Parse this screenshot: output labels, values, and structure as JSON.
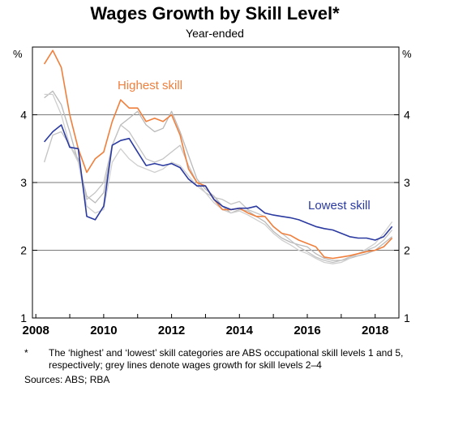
{
  "chart_data": {
    "type": "line",
    "title": "Wages Growth by Skill Level*",
    "subtitle": "Year-ended",
    "ylabel_left": "%",
    "ylabel_right": "%",
    "ylim": [
      1,
      5
    ],
    "yticks": [
      1,
      2,
      3,
      4
    ],
    "xlim": [
      2007.9,
      2018.7
    ],
    "xticks": [
      2008,
      2010,
      2012,
      2014,
      2016,
      2018
    ],
    "grid": true,
    "annotations": [
      "Highest skill",
      "Lowest skill"
    ],
    "series": [
      {
        "name": "Highest skill",
        "color": "#f07f3c",
        "x": [
          2008.25,
          2008.5,
          2008.75,
          2009.0,
          2009.25,
          2009.5,
          2009.75,
          2010.0,
          2010.25,
          2010.5,
          2010.75,
          2011.0,
          2011.25,
          2011.5,
          2011.75,
          2012.0,
          2012.25,
          2012.5,
          2012.75,
          2013.0,
          2013.25,
          2013.5,
          2013.75,
          2014.0,
          2014.25,
          2014.5,
          2014.75,
          2015.0,
          2015.25,
          2015.5,
          2015.75,
          2016.0,
          2016.25,
          2016.5,
          2016.75,
          2017.0,
          2017.25,
          2017.5,
          2017.75,
          2018.0,
          2018.25,
          2018.5
        ],
        "values": [
          4.75,
          4.95,
          4.7,
          4.0,
          3.5,
          3.15,
          3.35,
          3.45,
          3.9,
          4.22,
          4.1,
          4.1,
          3.9,
          3.95,
          3.9,
          4.0,
          3.7,
          3.2,
          3.0,
          2.95,
          2.75,
          2.6,
          2.6,
          2.62,
          2.55,
          2.5,
          2.5,
          2.35,
          2.25,
          2.22,
          2.15,
          2.1,
          2.05,
          1.9,
          1.88,
          1.9,
          1.92,
          1.95,
          1.98,
          2.0,
          2.05,
          2.18
        ]
      },
      {
        "name": "Lowest skill",
        "color": "#2a3aa0",
        "x": [
          2008.25,
          2008.5,
          2008.75,
          2009.0,
          2009.25,
          2009.5,
          2009.75,
          2010.0,
          2010.25,
          2010.5,
          2010.75,
          2011.0,
          2011.25,
          2011.5,
          2011.75,
          2012.0,
          2012.25,
          2012.5,
          2012.75,
          2013.0,
          2013.25,
          2013.5,
          2013.75,
          2014.0,
          2014.25,
          2014.5,
          2014.75,
          2015.0,
          2015.25,
          2015.5,
          2015.75,
          2016.0,
          2016.25,
          2016.5,
          2016.75,
          2017.0,
          2017.25,
          2017.5,
          2017.75,
          2018.0,
          2018.25,
          2018.5
        ],
        "values": [
          3.6,
          3.75,
          3.85,
          3.52,
          3.5,
          2.5,
          2.45,
          2.65,
          3.55,
          3.62,
          3.65,
          3.45,
          3.25,
          3.28,
          3.25,
          3.28,
          3.22,
          3.05,
          2.95,
          2.95,
          2.75,
          2.65,
          2.6,
          2.62,
          2.62,
          2.65,
          2.55,
          2.52,
          2.5,
          2.48,
          2.45,
          2.4,
          2.35,
          2.32,
          2.3,
          2.25,
          2.2,
          2.18,
          2.18,
          2.15,
          2.2,
          2.35
        ]
      },
      {
        "name": "",
        "color": "#b9b9b9",
        "x": [
          2008.25,
          2008.5,
          2008.75,
          2009.0,
          2009.25,
          2009.5,
          2009.75,
          2010.0,
          2010.25,
          2010.5,
          2010.75,
          2011.0,
          2011.25,
          2011.5,
          2011.75,
          2012.0,
          2012.25,
          2012.5,
          2012.75,
          2013.0,
          2013.25,
          2013.5,
          2013.75,
          2014.0,
          2014.25,
          2014.5,
          2014.75,
          2015.0,
          2015.25,
          2015.5,
          2015.75,
          2016.0,
          2016.25,
          2016.5,
          2016.75,
          2017.0,
          2017.25,
          2017.5,
          2017.75,
          2018.0,
          2018.25,
          2018.5
        ],
        "values": [
          4.25,
          4.35,
          4.15,
          3.75,
          3.3,
          2.8,
          2.7,
          2.85,
          3.55,
          3.85,
          3.95,
          4.05,
          3.85,
          3.75,
          3.8,
          4.05,
          3.75,
          3.4,
          3.05,
          2.9,
          2.8,
          2.65,
          2.55,
          2.6,
          2.58,
          2.5,
          2.42,
          2.28,
          2.18,
          2.12,
          2.08,
          2.05,
          1.95,
          1.88,
          1.85,
          1.85,
          1.88,
          1.92,
          1.95,
          2.0,
          2.1,
          2.2
        ]
      },
      {
        "name": "",
        "color": "#c4c4c4",
        "x": [
          2008.25,
          2008.5,
          2008.75,
          2009.0,
          2009.25,
          2009.5,
          2009.75,
          2010.0,
          2010.25,
          2010.5,
          2010.75,
          2011.0,
          2011.25,
          2011.5,
          2011.75,
          2012.0,
          2012.25,
          2012.5,
          2012.75,
          2013.0,
          2013.25,
          2013.5,
          2013.75,
          2014.0,
          2014.25,
          2014.5,
          2014.75,
          2015.0,
          2015.25,
          2015.5,
          2015.75,
          2016.0,
          2016.25,
          2016.5,
          2016.75,
          2017.0,
          2017.25,
          2017.5,
          2017.75,
          2018.0,
          2018.25,
          2018.5
        ],
        "values": [
          3.3,
          3.7,
          3.75,
          3.55,
          3.35,
          2.75,
          2.85,
          3.0,
          3.55,
          3.85,
          3.75,
          3.55,
          3.35,
          3.3,
          3.35,
          3.45,
          3.55,
          3.25,
          3.0,
          2.85,
          2.78,
          2.75,
          2.68,
          2.72,
          2.6,
          2.55,
          2.5,
          2.35,
          2.25,
          2.15,
          2.05,
          1.98,
          1.9,
          1.85,
          1.82,
          1.85,
          1.9,
          1.95,
          2.0,
          2.05,
          2.15,
          2.3
        ]
      },
      {
        "name": "",
        "color": "#cfcfcf",
        "x": [
          2008.25,
          2008.5,
          2008.75,
          2009.0,
          2009.25,
          2009.5,
          2009.75,
          2010.0,
          2010.25,
          2010.5,
          2010.75,
          2011.0,
          2011.25,
          2011.5,
          2011.75,
          2012.0,
          2012.25,
          2012.5,
          2012.75,
          2013.0,
          2013.25,
          2013.5,
          2013.75,
          2014.0,
          2014.25,
          2014.5,
          2014.75,
          2015.0,
          2015.25,
          2015.5,
          2015.75,
          2016.0,
          2016.25,
          2016.5,
          2016.75,
          2017.0,
          2017.25,
          2017.5,
          2017.75,
          2018.0,
          2018.25,
          2018.5
        ],
        "values": [
          4.3,
          4.3,
          4.0,
          3.55,
          3.3,
          2.65,
          2.55,
          2.6,
          3.3,
          3.5,
          3.35,
          3.25,
          3.2,
          3.15,
          3.2,
          3.3,
          3.25,
          3.1,
          2.95,
          2.85,
          2.7,
          2.6,
          2.55,
          2.58,
          2.52,
          2.45,
          2.38,
          2.25,
          2.15,
          2.08,
          2.0,
          1.95,
          1.88,
          1.82,
          1.8,
          1.82,
          1.88,
          1.95,
          2.02,
          2.1,
          2.25,
          2.42
        ]
      }
    ]
  },
  "notes": {
    "footnote_mark": "*",
    "footnote_text": "The ‘highest’ and ‘lowest’ skill categories are ABS occupational skill levels 1 and 5, respectively; grey lines denote wages growth for skill levels 2–4",
    "sources": "Sources:  ABS; RBA"
  }
}
